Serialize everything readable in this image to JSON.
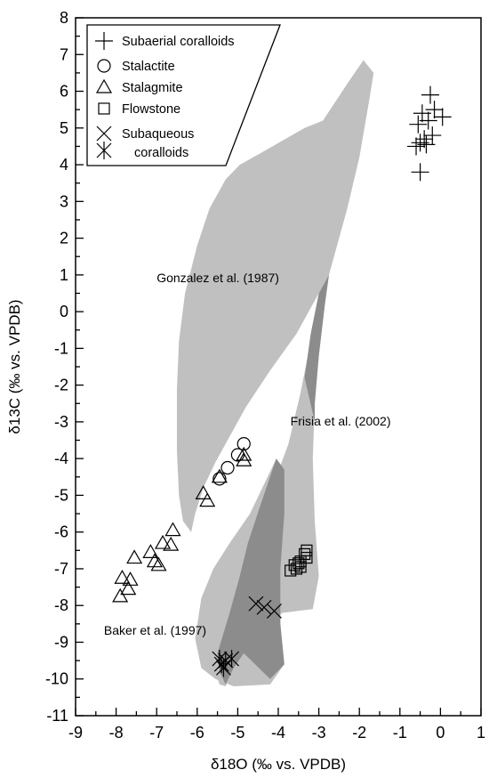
{
  "chart_data": {
    "type": "scatter",
    "xlabel": "δ18O (‰ vs. VPDB)",
    "ylabel": "δ13C (‰ vs. VPDB)",
    "xlim": [
      -9,
      1
    ],
    "ylim": [
      -11,
      8
    ],
    "x_ticks": [
      -9,
      -8,
      -7,
      -6,
      -5,
      -4,
      -3,
      -2,
      -1,
      0,
      1
    ],
    "y_ticks": [
      8,
      7,
      6,
      5,
      4,
      3,
      2,
      1,
      0,
      -1,
      -2,
      -3,
      -4,
      -5,
      -6,
      -7,
      -8,
      -9,
      -10,
      -11
    ],
    "grid": false,
    "legend_position": "top-left",
    "legend": [
      {
        "label": "Subaerial coralloids",
        "marker": "plus"
      },
      {
        "label": "Stalactite",
        "marker": "circle"
      },
      {
        "label": "Stalagmite",
        "marker": "triangle"
      },
      {
        "label": "Flowstone",
        "marker": "square"
      },
      {
        "label": "Subaqueous",
        "marker": "cross"
      },
      {
        "label": "coralloids",
        "marker": "asterisk"
      }
    ],
    "regions": [
      {
        "label": "Gonzalez et al. (1987)",
        "label_at": [
          -7.0,
          0.8
        ],
        "fill": "#c0c0c0",
        "polygon": [
          [
            -1.9,
            6.85
          ],
          [
            -1.65,
            6.5
          ],
          [
            -1.75,
            5.8
          ],
          [
            -2.0,
            4.2
          ],
          [
            -2.3,
            2.8
          ],
          [
            -2.75,
            1.0
          ],
          [
            -3.1,
            0.3
          ],
          [
            -3.55,
            -0.6
          ],
          [
            -4.2,
            -1.6
          ],
          [
            -4.8,
            -2.6
          ],
          [
            -5.2,
            -3.4
          ],
          [
            -5.55,
            -4.1
          ],
          [
            -5.85,
            -4.8
          ],
          [
            -6.05,
            -5.5
          ],
          [
            -6.15,
            -6.0
          ],
          [
            -6.35,
            -5.7
          ],
          [
            -6.45,
            -5.0
          ],
          [
            -6.5,
            -3.8
          ],
          [
            -6.5,
            -2.1
          ],
          [
            -6.45,
            -0.8
          ],
          [
            -6.3,
            0.5
          ],
          [
            -6.0,
            1.8
          ],
          [
            -5.7,
            2.8
          ],
          [
            -5.3,
            3.6
          ],
          [
            -4.95,
            4.0
          ],
          [
            -4.3,
            4.4
          ],
          [
            -3.35,
            5.0
          ],
          [
            -2.9,
            5.2
          ],
          [
            -2.6,
            5.7
          ],
          [
            -2.3,
            6.2
          ]
        ]
      },
      {
        "label": "Frisia et al. (2002)",
        "label_at": [
          -3.7,
          -3.1
        ],
        "fill": "#c0c0c0",
        "polygon": [
          [
            -2.75,
            1.0
          ],
          [
            -2.85,
            0.2
          ],
          [
            -3.0,
            -1.2
          ],
          [
            -3.1,
            -2.5
          ],
          [
            -3.15,
            -4.0
          ],
          [
            -3.1,
            -5.7
          ],
          [
            -3.0,
            -7.2
          ],
          [
            -3.15,
            -8.1
          ],
          [
            -3.9,
            -8.2
          ],
          [
            -4.45,
            -8.7
          ],
          [
            -4.85,
            -9.3
          ],
          [
            -5.1,
            -9.7
          ],
          [
            -5.3,
            -10.2
          ],
          [
            -5.45,
            -10.15
          ],
          [
            -5.55,
            -9.8
          ],
          [
            -5.45,
            -9.2
          ],
          [
            -5.2,
            -8.2
          ],
          [
            -4.95,
            -7.2
          ],
          [
            -4.75,
            -6.3
          ],
          [
            -4.45,
            -5.3
          ],
          [
            -4.05,
            -4.5
          ],
          [
            -3.75,
            -3.6
          ],
          [
            -3.45,
            -2.2
          ],
          [
            -3.2,
            -0.8
          ],
          [
            -3.0,
            0.5
          ]
        ]
      },
      {
        "label": "Baker et al. (1997)",
        "label_at": [
          -8.3,
          -8.8
        ],
        "fill": "#c0c0c0",
        "polygon": [
          [
            -4.05,
            -4.0
          ],
          [
            -3.85,
            -4.3
          ],
          [
            -3.85,
            -5.5
          ],
          [
            -3.95,
            -7.0
          ],
          [
            -3.95,
            -8.5
          ],
          [
            -3.85,
            -9.6
          ],
          [
            -4.2,
            -10.15
          ],
          [
            -5.1,
            -10.2
          ],
          [
            -5.55,
            -10.0
          ],
          [
            -5.9,
            -9.7
          ],
          [
            -6.05,
            -8.9
          ],
          [
            -5.9,
            -7.8
          ],
          [
            -5.6,
            -7.0
          ],
          [
            -5.2,
            -6.3
          ],
          [
            -4.7,
            -5.5
          ],
          [
            -4.35,
            -4.7
          ]
        ]
      }
    ],
    "overlaps": [
      {
        "fill": "#8c8c8c",
        "polygon": [
          [
            -2.75,
            1.0
          ],
          [
            -2.85,
            0.2
          ],
          [
            -3.0,
            -1.2
          ],
          [
            -3.1,
            -2.5
          ],
          [
            -3.1,
            -3.0
          ],
          [
            -3.35,
            -1.8
          ],
          [
            -3.2,
            -0.6
          ],
          [
            -3.0,
            0.5
          ]
        ]
      },
      {
        "fill": "#8c8c8c",
        "polygon": [
          [
            -4.05,
            -4.0
          ],
          [
            -3.85,
            -4.3
          ],
          [
            -3.85,
            -5.5
          ],
          [
            -3.95,
            -7.0
          ],
          [
            -3.95,
            -8.5
          ],
          [
            -3.85,
            -9.6
          ],
          [
            -4.2,
            -10.0
          ],
          [
            -4.85,
            -9.3
          ],
          [
            -5.1,
            -9.7
          ],
          [
            -5.3,
            -10.15
          ],
          [
            -5.45,
            -9.8
          ],
          [
            -5.5,
            -9.3
          ],
          [
            -5.2,
            -8.2
          ],
          [
            -4.95,
            -7.2
          ],
          [
            -4.75,
            -6.3
          ],
          [
            -4.45,
            -5.3
          ]
        ]
      }
    ],
    "series": [
      {
        "marker": "plus",
        "points": [
          [
            -0.25,
            5.9
          ],
          [
            -0.15,
            5.5
          ],
          [
            -0.45,
            5.4
          ],
          [
            0.05,
            5.3
          ],
          [
            -0.3,
            5.2
          ],
          [
            -0.55,
            5.1
          ],
          [
            -0.2,
            4.8
          ],
          [
            -0.4,
            4.7
          ],
          [
            -0.5,
            4.6
          ],
          [
            -0.35,
            4.55
          ],
          [
            -0.6,
            4.5
          ],
          [
            -0.5,
            3.8
          ]
        ]
      },
      {
        "marker": "circle",
        "points": [
          [
            -4.85,
            -3.6
          ],
          [
            -5.0,
            -3.9
          ],
          [
            -5.25,
            -4.25
          ],
          [
            -5.45,
            -4.55
          ]
        ]
      },
      {
        "marker": "triangle",
        "points": [
          [
            -4.85,
            -3.9
          ],
          [
            -4.85,
            -4.05
          ],
          [
            -5.45,
            -4.5
          ],
          [
            -5.85,
            -4.95
          ],
          [
            -5.75,
            -5.15
          ],
          [
            -6.6,
            -5.95
          ],
          [
            -6.65,
            -6.35
          ],
          [
            -6.85,
            -6.3
          ],
          [
            -7.15,
            -6.55
          ],
          [
            -7.05,
            -6.8
          ],
          [
            -6.95,
            -6.9
          ],
          [
            -7.55,
            -6.7
          ],
          [
            -7.65,
            -7.3
          ],
          [
            -7.85,
            -7.25
          ],
          [
            -7.7,
            -7.55
          ],
          [
            -7.9,
            -7.75
          ]
        ]
      },
      {
        "marker": "square",
        "points": [
          [
            -3.3,
            -6.5
          ],
          [
            -3.3,
            -6.7
          ],
          [
            -3.35,
            -6.6
          ],
          [
            -3.45,
            -6.8
          ],
          [
            -3.5,
            -6.85
          ],
          [
            -3.45,
            -6.95
          ],
          [
            -3.6,
            -6.9
          ],
          [
            -3.55,
            -7.0
          ],
          [
            -3.7,
            -7.05
          ]
        ]
      },
      {
        "marker": "cross",
        "points": [
          [
            -4.55,
            -7.95
          ],
          [
            -4.35,
            -8.05
          ],
          [
            -4.1,
            -8.15
          ]
        ]
      },
      {
        "marker": "asterisk",
        "points": [
          [
            -5.45,
            -9.45
          ],
          [
            -5.3,
            -9.5
          ],
          [
            -5.15,
            -9.45
          ],
          [
            -5.4,
            -9.6
          ],
          [
            -5.35,
            -9.7
          ]
        ]
      }
    ]
  }
}
